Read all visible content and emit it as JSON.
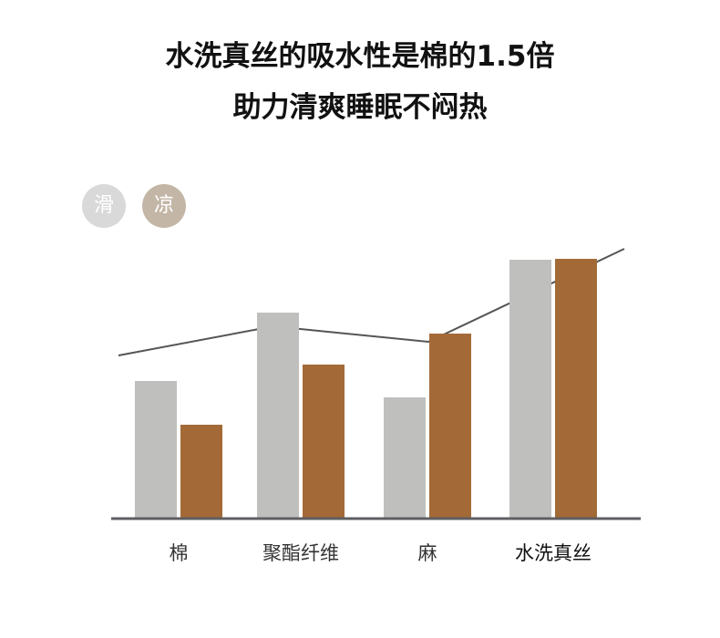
{
  "header": {
    "title_line1": "水洗真丝的吸水性是棉的1.5倍",
    "title_line2": "助力清爽睡眠不闷热"
  },
  "legend": [
    {
      "label": "滑",
      "color": "#d9d9d9"
    },
    {
      "label": "凉",
      "color": "#c4b6a6"
    }
  ],
  "chart_data": {
    "type": "bar",
    "categories": [
      "棉",
      "聚酯纤维",
      "麻",
      "水洗真丝"
    ],
    "series": [
      {
        "values": [
          150,
          225,
          132,
          283
        ],
        "color": "#bfbfbd"
      },
      {
        "values": [
          102,
          168,
          202,
          284
        ],
        "color": "#a36a37"
      }
    ],
    "trend_line": {
      "values": [
        178,
        210,
        193,
        295
      ],
      "color": "#555555"
    },
    "ylim": [
      0,
      300
    ],
    "grid": false,
    "axis_color": "#5f5f63",
    "highlight_category": "水洗真丝"
  }
}
